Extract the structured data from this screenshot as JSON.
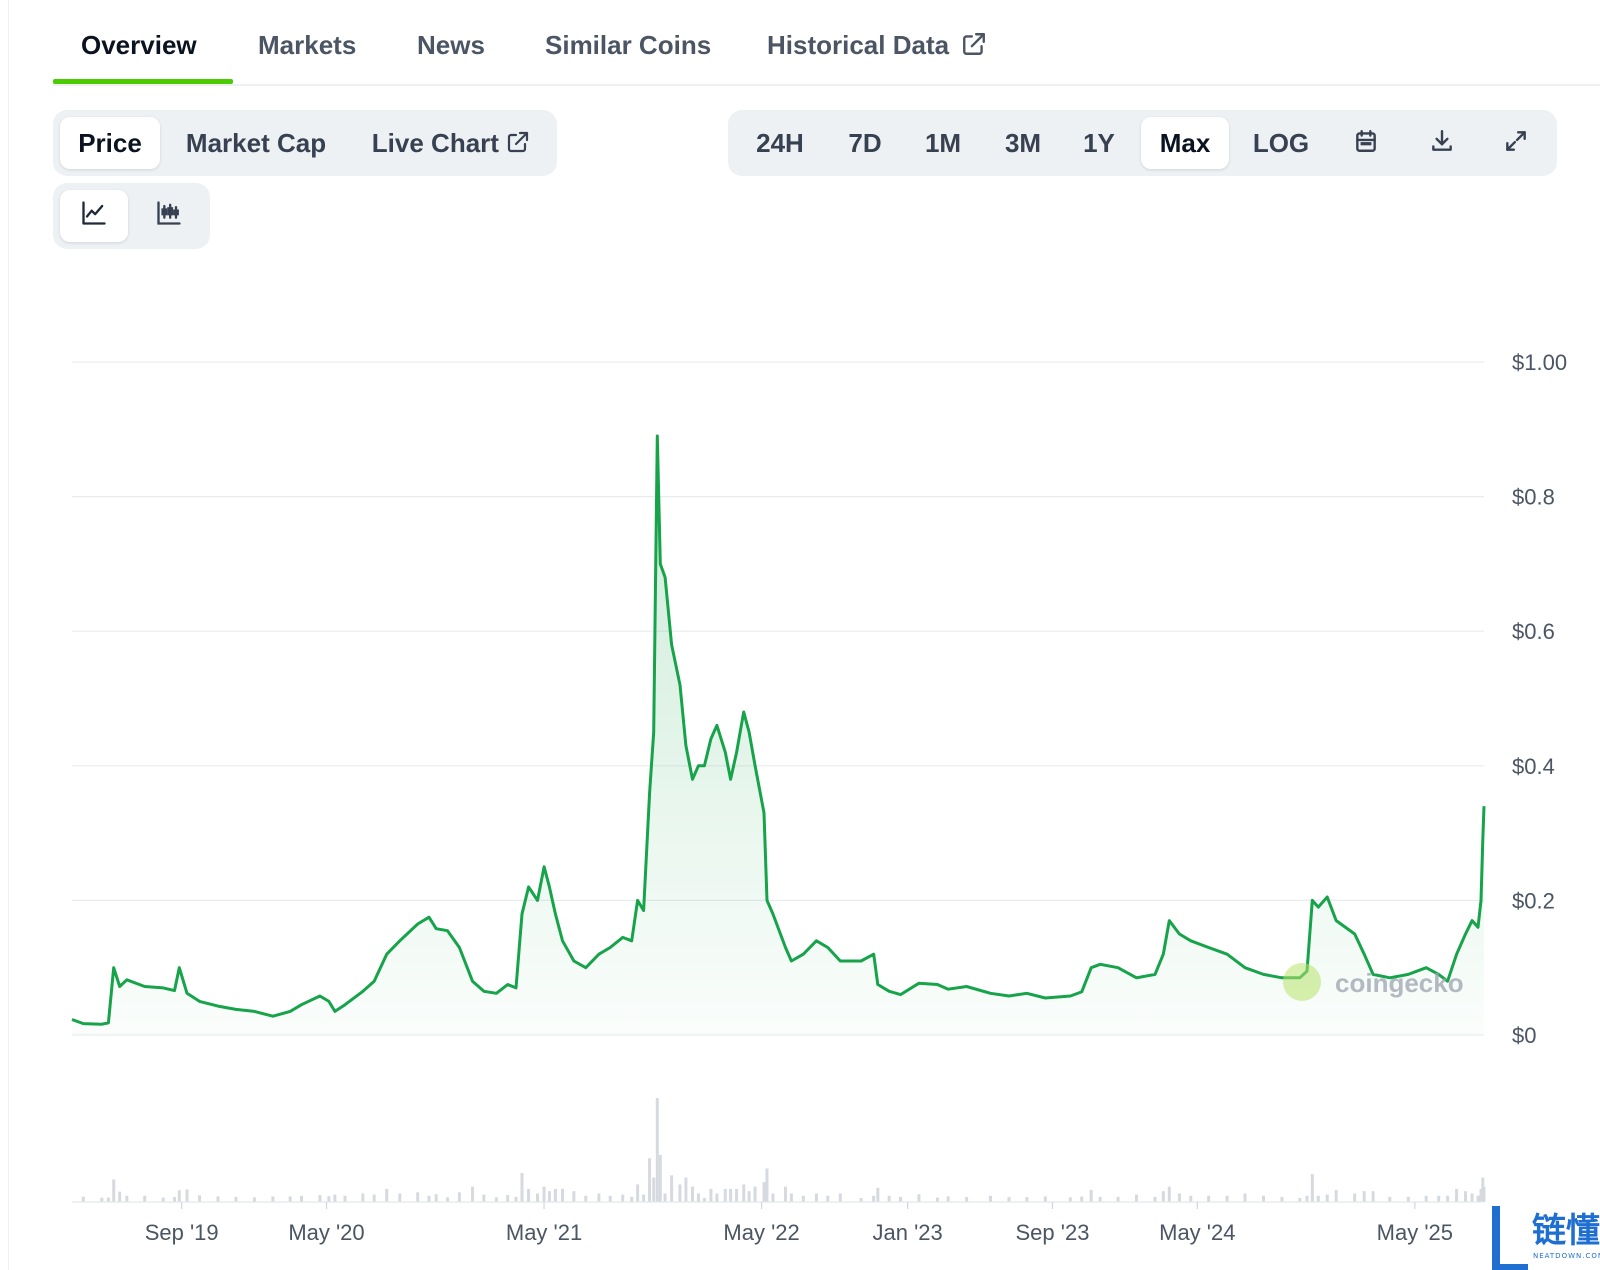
{
  "tabs": [
    {
      "label": "Overview",
      "active": true
    },
    {
      "label": "Markets",
      "active": false
    },
    {
      "label": "News",
      "active": false
    },
    {
      "label": "Similar Coins",
      "active": false
    },
    {
      "label": "Historical Data",
      "active": false,
      "external": true
    }
  ],
  "chart_type_tabs": [
    {
      "label": "Price",
      "active": true
    },
    {
      "label": "Market Cap",
      "active": false
    },
    {
      "label": "Live Chart",
      "active": false,
      "external": true
    }
  ],
  "range_tabs": [
    {
      "label": "24H",
      "active": false
    },
    {
      "label": "7D",
      "active": false
    },
    {
      "label": "1M",
      "active": false
    },
    {
      "label": "3M",
      "active": false
    },
    {
      "label": "1Y",
      "active": false
    },
    {
      "label": "Max",
      "active": true
    },
    {
      "label": "LOG",
      "active": false
    }
  ],
  "toolbar_icons": [
    "calendar-icon",
    "download-icon",
    "expand-icon"
  ],
  "view_toggle": [
    {
      "icon": "line-chart-icon",
      "active": true
    },
    {
      "icon": "candlestick-chart-icon",
      "active": false
    }
  ],
  "colors": {
    "line": "#16a34a",
    "accent": "#4bcc00",
    "volume": "#d6dae0"
  },
  "watermark": "coingecko",
  "corner_logo": {
    "text": "链懂",
    "sub": "NEATDOWN.COM"
  },
  "chart_data": {
    "type": "area",
    "y_currency": "USD",
    "ylim": [
      0,
      1.0
    ],
    "y_ticks": [
      {
        "value": 0,
        "label": "$0"
      },
      {
        "value": 0.2,
        "label": "$0.2"
      },
      {
        "value": 0.4,
        "label": "$0.4"
      },
      {
        "value": 0.6,
        "label": "$0.6"
      },
      {
        "value": 0.8,
        "label": "$0.8"
      },
      {
        "value": 1.0,
        "label": "$1.00"
      }
    ],
    "x_range": [
      "2019-03-01",
      "2025-08-25"
    ],
    "x_ticks": [
      {
        "date": "2019-09-01",
        "label": "Sep '19"
      },
      {
        "date": "2020-05-01",
        "label": "May '20"
      },
      {
        "date": "2021-05-01",
        "label": "May '21"
      },
      {
        "date": "2022-05-01",
        "label": "May '22"
      },
      {
        "date": "2023-01-01",
        "label": "Jan '23"
      },
      {
        "date": "2023-09-01",
        "label": "Sep '23"
      },
      {
        "date": "2024-05-01",
        "label": "May '24"
      },
      {
        "date": "2025-05-01",
        "label": "May '25"
      }
    ],
    "grid": true,
    "series": [
      {
        "points": [
          [
            "2019-03-01",
            0.023
          ],
          [
            "2019-03-20",
            0.017
          ],
          [
            "2019-04-20",
            0.016
          ],
          [
            "2019-05-01",
            0.018
          ],
          [
            "2019-05-10",
            0.1
          ],
          [
            "2019-05-20",
            0.072
          ],
          [
            "2019-06-01",
            0.082
          ],
          [
            "2019-07-01",
            0.072
          ],
          [
            "2019-08-01",
            0.07
          ],
          [
            "2019-08-20",
            0.066
          ],
          [
            "2019-08-28",
            0.1
          ],
          [
            "2019-09-10",
            0.062
          ],
          [
            "2019-10-01",
            0.05
          ],
          [
            "2019-11-01",
            0.043
          ],
          [
            "2019-12-01",
            0.038
          ],
          [
            "2020-01-01",
            0.035
          ],
          [
            "2020-02-01",
            0.028
          ],
          [
            "2020-03-01",
            0.035
          ],
          [
            "2020-03-20",
            0.045
          ],
          [
            "2020-04-20",
            0.058
          ],
          [
            "2020-05-05",
            0.05
          ],
          [
            "2020-05-15",
            0.035
          ],
          [
            "2020-06-01",
            0.045
          ],
          [
            "2020-07-01",
            0.065
          ],
          [
            "2020-07-20",
            0.08
          ],
          [
            "2020-08-10",
            0.12
          ],
          [
            "2020-09-01",
            0.14
          ],
          [
            "2020-10-01",
            0.165
          ],
          [
            "2020-10-20",
            0.175
          ],
          [
            "2020-11-01",
            0.158
          ],
          [
            "2020-11-20",
            0.155
          ],
          [
            "2020-12-10",
            0.13
          ],
          [
            "2021-01-01",
            0.08
          ],
          [
            "2021-01-20",
            0.065
          ],
          [
            "2021-02-10",
            0.062
          ],
          [
            "2021-03-01",
            0.075
          ],
          [
            "2021-03-15",
            0.07
          ],
          [
            "2021-03-25",
            0.18
          ],
          [
            "2021-04-05",
            0.22
          ],
          [
            "2021-04-20",
            0.2
          ],
          [
            "2021-05-01",
            0.25
          ],
          [
            "2021-05-10",
            0.22
          ],
          [
            "2021-05-20",
            0.18
          ],
          [
            "2021-06-01",
            0.14
          ],
          [
            "2021-06-20",
            0.11
          ],
          [
            "2021-07-10",
            0.1
          ],
          [
            "2021-08-01",
            0.12
          ],
          [
            "2021-08-20",
            0.13
          ],
          [
            "2021-09-10",
            0.145
          ],
          [
            "2021-09-25",
            0.14
          ],
          [
            "2021-10-05",
            0.2
          ],
          [
            "2021-10-15",
            0.185
          ],
          [
            "2021-10-25",
            0.36
          ],
          [
            "2021-11-01",
            0.45
          ],
          [
            "2021-11-07",
            0.89
          ],
          [
            "2021-11-12",
            0.7
          ],
          [
            "2021-11-20",
            0.68
          ],
          [
            "2021-12-01",
            0.58
          ],
          [
            "2021-12-15",
            0.52
          ],
          [
            "2021-12-25",
            0.43
          ],
          [
            "2022-01-05",
            0.38
          ],
          [
            "2022-01-15",
            0.4
          ],
          [
            "2022-01-25",
            0.4
          ],
          [
            "2022-02-05",
            0.44
          ],
          [
            "2022-02-15",
            0.46
          ],
          [
            "2022-03-01",
            0.42
          ],
          [
            "2022-03-10",
            0.38
          ],
          [
            "2022-03-20",
            0.42
          ],
          [
            "2022-04-01",
            0.48
          ],
          [
            "2022-04-10",
            0.45
          ],
          [
            "2022-04-20",
            0.4
          ],
          [
            "2022-05-05",
            0.33
          ],
          [
            "2022-05-10",
            0.2
          ],
          [
            "2022-05-20",
            0.18
          ],
          [
            "2022-06-10",
            0.13
          ],
          [
            "2022-06-20",
            0.11
          ],
          [
            "2022-07-10",
            0.12
          ],
          [
            "2022-08-01",
            0.14
          ],
          [
            "2022-08-20",
            0.13
          ],
          [
            "2022-09-10",
            0.11
          ],
          [
            "2022-10-15",
            0.11
          ],
          [
            "2022-11-05",
            0.12
          ],
          [
            "2022-11-12",
            0.075
          ],
          [
            "2022-12-01",
            0.065
          ],
          [
            "2022-12-20",
            0.06
          ],
          [
            "2023-01-20",
            0.077
          ],
          [
            "2023-02-20",
            0.075
          ],
          [
            "2023-03-10",
            0.068
          ],
          [
            "2023-04-10",
            0.072
          ],
          [
            "2023-05-20",
            0.062
          ],
          [
            "2023-06-20",
            0.058
          ],
          [
            "2023-07-20",
            0.062
          ],
          [
            "2023-08-20",
            0.055
          ],
          [
            "2023-10-01",
            0.058
          ],
          [
            "2023-10-20",
            0.064
          ],
          [
            "2023-11-05",
            0.1
          ],
          [
            "2023-11-20",
            0.105
          ],
          [
            "2023-12-20",
            0.1
          ],
          [
            "2024-01-20",
            0.085
          ],
          [
            "2024-02-20",
            0.09
          ],
          [
            "2024-03-05",
            0.12
          ],
          [
            "2024-03-15",
            0.17
          ],
          [
            "2024-04-01",
            0.15
          ],
          [
            "2024-04-20",
            0.14
          ],
          [
            "2024-05-20",
            0.13
          ],
          [
            "2024-06-20",
            0.12
          ],
          [
            "2024-07-20",
            0.1
          ],
          [
            "2024-08-20",
            0.09
          ],
          [
            "2024-09-20",
            0.085
          ],
          [
            "2024-10-20",
            0.085
          ],
          [
            "2024-11-01",
            0.095
          ],
          [
            "2024-11-10",
            0.2
          ],
          [
            "2024-11-20",
            0.19
          ],
          [
            "2024-12-05",
            0.205
          ],
          [
            "2024-12-20",
            0.17
          ],
          [
            "2025-01-20",
            0.15
          ],
          [
            "2025-02-05",
            0.12
          ],
          [
            "2025-02-20",
            0.09
          ],
          [
            "2025-03-20",
            0.085
          ],
          [
            "2025-04-20",
            0.09
          ],
          [
            "2025-05-20",
            0.1
          ],
          [
            "2025-06-10",
            0.09
          ],
          [
            "2025-06-25",
            0.08
          ],
          [
            "2025-07-10",
            0.12
          ],
          [
            "2025-07-25",
            0.15
          ],
          [
            "2025-08-05",
            0.17
          ],
          [
            "2025-08-15",
            0.16
          ],
          [
            "2025-08-20",
            0.2
          ],
          [
            "2025-08-23",
            0.29
          ],
          [
            "2025-08-25",
            0.34
          ]
        ]
      }
    ]
  }
}
